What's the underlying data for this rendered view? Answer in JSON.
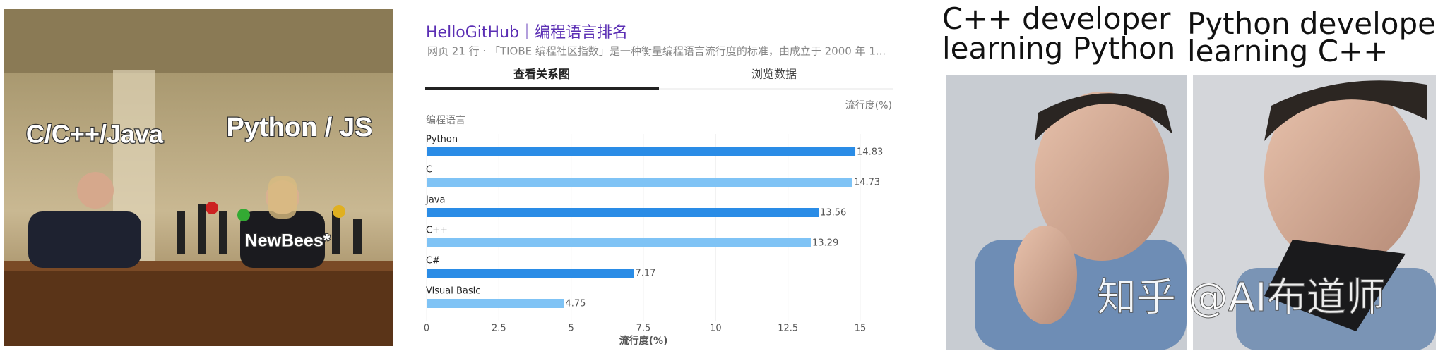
{
  "chart_data": {
    "type": "bar",
    "orientation": "horizontal",
    "title": "HelloGitHub｜编程语言排名",
    "subtitle": "网页 21 行 · 「TIOBE 编程社区指数」是一种衡量编程语言流行度的标准，由成立于 2000 年 1...",
    "tabs": [
      "查看关系图",
      "浏览数据"
    ],
    "y_label": "编程语言",
    "unit_label": "流行度(%)",
    "x_label": "流行度(%)",
    "categories": [
      "Python",
      "C",
      "Java",
      "C++",
      "C#",
      "Visual Basic"
    ],
    "values": [
      14.83,
      14.73,
      13.56,
      13.29,
      7.17,
      4.75
    ],
    "colors": [
      "#2a8ce6",
      "#7fc3f5",
      "#2a8ce6",
      "#7fc3f5",
      "#2a8ce6",
      "#7fc3f5"
    ],
    "xlim": [
      0,
      15
    ],
    "xticks": [
      0,
      2.5,
      5,
      7.5,
      10,
      12.5,
      15
    ],
    "grid": true
  },
  "memes": {
    "left": {
      "captions": [
        "C/C++/Java",
        "Python / JS",
        "NewBees*"
      ]
    },
    "right": {
      "captions": [
        "C++ developer\nlearning Python",
        "Python developer\nlearning C++"
      ],
      "watermark": "知乎 @AI布道师"
    }
  }
}
